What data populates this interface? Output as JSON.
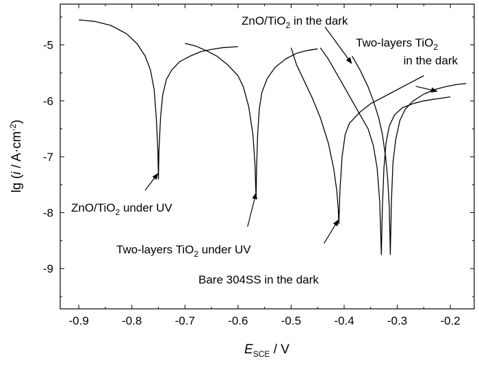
{
  "chart_data": {
    "type": "line",
    "xlabel": {
      "main": "E",
      "sub": "SCE",
      "unit": " / V"
    },
    "ylabel": {
      "pre": "lg (",
      "var": "i",
      "unit": " / A·cm",
      "sup": "-2",
      "post": ")"
    },
    "xlim": [
      -0.935,
      -0.155
    ],
    "ylim": [
      -9.72,
      -4.27
    ],
    "xticks": [
      -0.9,
      -0.8,
      -0.7,
      -0.6,
      -0.5,
      -0.4,
      -0.3,
      -0.2
    ],
    "xtick_labels": [
      "-0.9",
      "-0.8",
      "-0.7",
      "-0.6",
      "-0.5",
      "-0.4",
      "-0.3",
      "-0.2"
    ],
    "yticks": [
      -9,
      -8,
      -7,
      -6,
      -5
    ],
    "ytick_labels": [
      "-9",
      "-8",
      "-7",
      "-6",
      "-5"
    ],
    "grid": false,
    "series": [
      {
        "x": [
          -0.9,
          -0.87,
          -0.84,
          -0.81,
          -0.79,
          -0.775,
          -0.765,
          -0.758,
          -0.754,
          -0.751,
          -0.75,
          -0.749,
          -0.746,
          -0.742,
          -0.735,
          -0.725,
          -0.71,
          -0.69,
          -0.67,
          -0.65,
          -0.63,
          -0.6
        ],
        "y": [
          -4.55,
          -4.58,
          -4.65,
          -4.8,
          -4.98,
          -5.2,
          -5.45,
          -5.8,
          -6.3,
          -6.9,
          -7.4,
          -6.9,
          -6.3,
          -5.9,
          -5.62,
          -5.45,
          -5.3,
          -5.2,
          -5.12,
          -5.08,
          -5.05,
          -5.03
        ]
      },
      {
        "x": [
          -0.7,
          -0.68,
          -0.66,
          -0.64,
          -0.62,
          -0.6,
          -0.59,
          -0.58,
          -0.572,
          -0.568,
          -0.566,
          -0.565,
          -0.563,
          -0.56,
          -0.555,
          -0.545,
          -0.53,
          -0.51,
          -0.49,
          -0.47,
          -0.45
        ],
        "y": [
          -4.97,
          -5.02,
          -5.1,
          -5.2,
          -5.35,
          -5.55,
          -5.75,
          -6.1,
          -6.6,
          -7.15,
          -7.75,
          -7.2,
          -6.6,
          -6.15,
          -5.85,
          -5.6,
          -5.4,
          -5.25,
          -5.15,
          -5.1,
          -5.07
        ]
      },
      {
        "x": [
          -0.5,
          -0.49,
          -0.475,
          -0.46,
          -0.445,
          -0.43,
          -0.42,
          -0.414,
          -0.411,
          -0.41,
          -0.408,
          -0.404,
          -0.398,
          -0.39,
          -0.37,
          -0.35,
          -0.33,
          -0.31,
          -0.29,
          -0.27,
          -0.25
        ],
        "y": [
          -5.05,
          -5.35,
          -5.65,
          -5.95,
          -6.3,
          -6.75,
          -7.2,
          -7.6,
          -7.95,
          -8.2,
          -7.6,
          -7.0,
          -6.6,
          -6.4,
          -6.2,
          -6.05,
          -5.95,
          -5.85,
          -5.75,
          -5.65,
          -5.55
        ]
      },
      {
        "x": [
          -0.445,
          -0.43,
          -0.415,
          -0.4,
          -0.385,
          -0.37,
          -0.355,
          -0.345,
          -0.338,
          -0.333,
          -0.33,
          -0.328,
          -0.325,
          -0.321,
          -0.315,
          -0.305,
          -0.29,
          -0.27,
          -0.25,
          -0.23,
          -0.2
        ],
        "y": [
          -5.05,
          -5.25,
          -5.5,
          -5.75,
          -6.0,
          -6.25,
          -6.5,
          -6.8,
          -7.2,
          -7.8,
          -8.75,
          -7.9,
          -7.2,
          -6.75,
          -6.45,
          -6.25,
          -6.12,
          -6.05,
          -6.0,
          -5.97,
          -5.93
        ]
      },
      {
        "x": [
          -0.385,
          -0.37,
          -0.355,
          -0.345,
          -0.335,
          -0.328,
          -0.322,
          -0.318,
          -0.315,
          -0.313,
          -0.311,
          -0.308,
          -0.303,
          -0.295,
          -0.285,
          -0.27,
          -0.25,
          -0.23,
          -0.21,
          -0.19,
          -0.17
        ],
        "y": [
          -5.2,
          -5.45,
          -5.75,
          -6.0,
          -6.3,
          -6.6,
          -7.0,
          -7.4,
          -7.9,
          -8.75,
          -7.8,
          -7.1,
          -6.7,
          -6.35,
          -6.15,
          -6.0,
          -5.88,
          -5.8,
          -5.75,
          -5.71,
          -5.69
        ]
      }
    ],
    "annotations": [
      {
        "parts": [
          {
            "t": "ZnO/TiO"
          },
          {
            "t": "2",
            "sub": true
          },
          {
            "t": " under UV"
          }
        ],
        "tip": [
          -0.751,
          -7.3
        ],
        "tail": [
          -0.775,
          -7.6
        ]
      },
      {
        "parts": [
          {
            "t": "Two-layers TiO"
          },
          {
            "t": "2",
            "sub": true
          },
          {
            "t": " under UV"
          }
        ],
        "tip": [
          -0.566,
          -7.65
        ],
        "tail": [
          -0.582,
          -8.25
        ]
      },
      {
        "parts": [
          {
            "t": "Bare 304SS in the dark"
          }
        ],
        "tip": [
          -0.411,
          -8.13
        ],
        "tail": [
          -0.438,
          -8.55
        ]
      },
      {
        "parts": [
          {
            "t": "ZnO/TiO"
          },
          {
            "t": "2",
            "sub": true
          },
          {
            "t": " in the dark"
          }
        ],
        "tip": [
          -0.386,
          -5.33
        ],
        "tail": [
          -0.436,
          -4.68
        ]
      },
      {
        "parts": [
          {
            "t": "Two-layers TiO"
          },
          {
            "t": "2",
            "sub": true
          }
        ],
        "tip": [
          -0.225,
          -5.83
        ],
        "tail": [
          -0.265,
          -5.74
        ]
      },
      {
        "parts": [
          {
            "t": "in the dark"
          }
        ]
      }
    ]
  }
}
